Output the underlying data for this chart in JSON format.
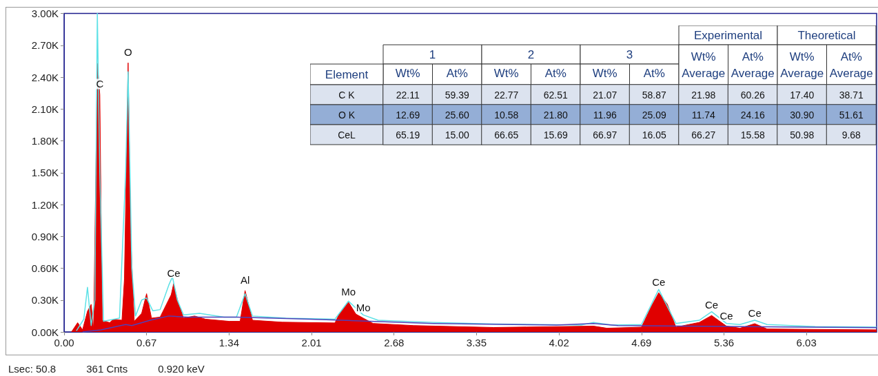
{
  "chart_data": [
    {
      "type": "area",
      "xlim": [
        0,
        6.6
      ],
      "ylim": [
        0,
        3000
      ],
      "xticks": [
        {
          "value": 0,
          "label": "0.00"
        },
        0.67,
        1.34,
        2.01,
        2.68,
        3.35,
        4.02,
        4.69,
        5.36,
        6.03
      ],
      "yticks": [
        {
          "value": 0,
          "label": "0.00K"
        },
        {
          "value": 300,
          "label": "0.30K"
        },
        {
          "value": 600,
          "label": "0.60K"
        },
        {
          "value": 900,
          "label": "0.90K"
        },
        {
          "value": 1200,
          "label": "1.20K"
        },
        {
          "value": 1500,
          "label": "1.50K"
        },
        {
          "value": 1800,
          "label": "1.80K"
        },
        {
          "value": 2100,
          "label": "2.10K"
        },
        {
          "value": 2400,
          "label": "2.40K"
        },
        {
          "value": 2700,
          "label": "2.70K"
        },
        {
          "value": 3000,
          "label": "3.00K"
        }
      ],
      "grid": false,
      "marker": "none",
      "series": [
        {
          "type": "area",
          "color": "#e00000",
          "x": [
            0.06,
            0.11,
            0.15,
            0.19,
            0.22,
            0.24,
            0.27,
            0.29,
            0.31,
            0.37,
            0.4,
            0.47,
            0.49,
            0.52,
            0.54,
            0.57,
            0.63,
            0.67,
            0.71,
            0.78,
            0.87,
            0.89,
            0.92,
            0.97,
            1.06,
            1.15,
            1.34,
            1.43,
            1.47,
            1.53,
            1.77,
            2.2,
            2.24,
            2.31,
            2.37,
            2.43,
            2.51,
            2.84,
            3.49,
            4.3,
            4.41,
            4.69,
            4.77,
            4.83,
            4.9,
            4.97,
            5.16,
            5.26,
            5.38,
            5.49,
            5.61,
            5.71,
            6.09,
            6.6
          ],
          "values": [
            0,
            87,
            20,
            195,
            260,
            20,
            2530,
            2235,
            110,
            87,
            120,
            110,
            500,
            2535,
            930,
            100,
            175,
            360,
            130,
            140,
            350,
            455,
            305,
            130,
            150,
            120,
            100,
            100,
            390,
            110,
            92,
            85,
            180,
            280,
            168,
            130,
            80,
            60,
            42,
            55,
            35,
            45,
            240,
            370,
            260,
            45,
            90,
            155,
            55,
            35,
            78,
            28,
            24,
            20
          ]
        },
        {
          "type": "line",
          "color": "#5ce1e6",
          "x": [
            0.1,
            0.16,
            0.19,
            0.22,
            0.25,
            0.27,
            0.29,
            0.32,
            0.45,
            0.5,
            0.52,
            0.55,
            0.58,
            0.63,
            0.67,
            0.72,
            0.78,
            0.85,
            0.88,
            0.92,
            0.97,
            1.1,
            1.3,
            1.4,
            1.47,
            1.53,
            1.8,
            2.2,
            2.31,
            2.43,
            2.55,
            3.0,
            3.5,
            4.2,
            4.3,
            4.45,
            4.69,
            4.83,
            4.97,
            5.16,
            5.26,
            5.38,
            5.49,
            5.61,
            5.71,
            6.1,
            6.6
          ],
          "values": [
            10,
            120,
            420,
            60,
            300,
            3000,
            1500,
            100,
            130,
            1500,
            2450,
            600,
            150,
            300,
            320,
            200,
            210,
            440,
            520,
            300,
            160,
            175,
            140,
            140,
            360,
            150,
            130,
            120,
            290,
            160,
            110,
            90,
            75,
            65,
            90,
            65,
            70,
            400,
            80,
            110,
            190,
            80,
            70,
            110,
            70,
            50,
            45
          ]
        },
        {
          "type": "line",
          "color": "#5040b8",
          "x": [
            0.15,
            0.3,
            0.5,
            0.55,
            0.7,
            0.85,
            1.0,
            1.4,
            2.0,
            3.0,
            4.0,
            4.3,
            4.5,
            5.0,
            6.0,
            6.6
          ],
          "values": [
            0,
            20,
            70,
            60,
            110,
            150,
            140,
            140,
            120,
            80,
            65,
            80,
            60,
            55,
            45,
            40
          ]
        }
      ],
      "annotations": [
        {
          "text": "C",
          "x": 0.29,
          "y": 2235
        },
        {
          "text": "O",
          "x": 0.52,
          "y": 2535
        },
        {
          "text": "Ce",
          "x": 0.89,
          "y": 455
        },
        {
          "text": "Al",
          "x": 1.47,
          "y": 390
        },
        {
          "text": "Mo",
          "x": 2.31,
          "y": 280
        },
        {
          "text": "Mo",
          "x": 2.43,
          "y": 130
        },
        {
          "text": "Ce",
          "x": 4.83,
          "y": 370
        },
        {
          "text": "Ce",
          "x": 5.26,
          "y": 155
        },
        {
          "text": "Ce",
          "x": 5.38,
          "y": 55
        },
        {
          "text": "Ce",
          "x": 5.61,
          "y": 78
        },
        "Lsec: 50.8",
        "361 Cnts",
        "0.920 keV"
      ]
    },
    {
      "type": "heatmap",
      "ylabel": "Element",
      "annotations": [
        "1",
        "2",
        "3",
        "Experimental",
        "Theoretical"
      ],
      "categories": [
        "Wt%",
        "At%",
        "Wt%",
        "At%",
        "Wt%",
        "At%",
        "Wt%\nAverage",
        "At%\nAverage",
        "Wt%\nAverage",
        "At%\nAverage"
      ],
      "y_categories": [
        "C K",
        "O K",
        "CeL"
      ],
      "colors": [
        "#dce3ef",
        "#94aed6",
        "#dce3ef"
      ],
      "cells": [
        [
          22.11,
          59.39,
          22.77,
          62.51,
          21.07,
          58.87,
          21.98,
          60.26,
          17.4,
          38.71
        ],
        [
          12.69,
          25.6,
          10.58,
          21.8,
          11.96,
          25.09,
          11.74,
          24.16,
          30.9,
          51.61
        ],
        [
          65.19,
          15,
          66.65,
          15.69,
          66.97,
          16.05,
          66.27,
          15.58,
          50.98,
          9.68
        ]
      ],
      "cell_labels": [
        [
          "22.11",
          "59.39",
          "22.77",
          "62.51",
          "21.07",
          "58.87",
          "21.98",
          "60.26",
          "17.40",
          "38.71"
        ],
        [
          "12.69",
          "25.60",
          "10.58",
          "21.80",
          "11.96",
          "25.09",
          "11.74",
          "24.16",
          "30.90",
          "51.61"
        ],
        [
          "65.19",
          "15.00",
          "66.65",
          "15.69",
          "66.97",
          "16.05",
          "66.27",
          "15.58",
          "50.98",
          "9.68"
        ]
      ],
      "data_labels": true
    }
  ]
}
